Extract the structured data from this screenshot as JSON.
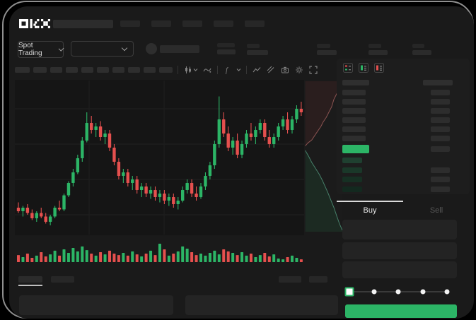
{
  "brand": {
    "name": "OKX"
  },
  "colors": {
    "green": "#2cb566",
    "red": "#e5504e",
    "panel_bg": "#1a1a1a",
    "tab_active_indicator": "#d9d9d9",
    "bid_row_shades": [
      "#1f4030",
      "#1a3829",
      "#163023",
      "#13291f"
    ]
  },
  "header": {
    "nav_placeholder_count": 5
  },
  "market_bar": {
    "market_selector": {
      "label": "Spot Trading"
    },
    "stat_group_count": 4
  },
  "toolbar": {
    "interval_placeholder_count": 10,
    "icons": [
      "chart-type",
      "compare",
      "indicators",
      "line-tool",
      "draw",
      "snapshot",
      "settings",
      "fullscreen"
    ]
  },
  "orderbook": {
    "view_modes": [
      "combined-book",
      "bids-only",
      "asks-only"
    ],
    "ask_row_count": 6,
    "bid_rows": [
      {
        "right": false
      },
      {
        "right": true
      },
      {
        "right": true
      },
      {
        "right": true
      }
    ]
  },
  "trade_form": {
    "tabs": [
      {
        "label": "Buy",
        "active": true
      },
      {
        "label": "Sell",
        "active": false
      }
    ],
    "field_count": 3,
    "slider": {
      "stops": 5,
      "active_index": 0
    }
  },
  "chart_data": {
    "type": "candlestick",
    "price_scale": [
      0,
      100
    ],
    "candles": [
      [
        30,
        33,
        27,
        28
      ],
      [
        28,
        31,
        25,
        30
      ],
      [
        30,
        32,
        26,
        27
      ],
      [
        27,
        29,
        23,
        24
      ],
      [
        24,
        28,
        22,
        27
      ],
      [
        27,
        30,
        24,
        25
      ],
      [
        25,
        27,
        21,
        22
      ],
      [
        22,
        26,
        20,
        25
      ],
      [
        25,
        31,
        24,
        30
      ],
      [
        30,
        34,
        28,
        29
      ],
      [
        29,
        38,
        28,
        37
      ],
      [
        37,
        45,
        36,
        44
      ],
      [
        44,
        52,
        42,
        50
      ],
      [
        50,
        60,
        49,
        58
      ],
      [
        58,
        70,
        56,
        68
      ],
      [
        68,
        84,
        67,
        78
      ],
      [
        78,
        82,
        72,
        74
      ],
      [
        74,
        78,
        70,
        76
      ],
      [
        76,
        79,
        68,
        70
      ],
      [
        70,
        74,
        66,
        72
      ],
      [
        72,
        74,
        62,
        64
      ],
      [
        64,
        66,
        54,
        56
      ],
      [
        56,
        58,
        46,
        48
      ],
      [
        48,
        52,
        44,
        50
      ],
      [
        50,
        52,
        42,
        44
      ],
      [
        44,
        48,
        40,
        46
      ],
      [
        46,
        48,
        38,
        40
      ],
      [
        40,
        44,
        36,
        42
      ],
      [
        42,
        44,
        36,
        38
      ],
      [
        38,
        42,
        35,
        40
      ],
      [
        40,
        42,
        34,
        36
      ],
      [
        36,
        40,
        33,
        38
      ],
      [
        38,
        40,
        32,
        34
      ],
      [
        34,
        38,
        31,
        36
      ],
      [
        36,
        38,
        30,
        32
      ],
      [
        32,
        36,
        29,
        34
      ],
      [
        34,
        42,
        33,
        40
      ],
      [
        40,
        46,
        38,
        44
      ],
      [
        44,
        46,
        36,
        38
      ],
      [
        38,
        42,
        34,
        36
      ],
      [
        36,
        44,
        35,
        42
      ],
      [
        42,
        50,
        40,
        48
      ],
      [
        48,
        56,
        46,
        54
      ],
      [
        54,
        68,
        52,
        66
      ],
      [
        66,
        93,
        64,
        80
      ],
      [
        80,
        84,
        70,
        72
      ],
      [
        72,
        76,
        62,
        64
      ],
      [
        64,
        70,
        60,
        68
      ],
      [
        68,
        72,
        58,
        60
      ],
      [
        60,
        68,
        58,
        66
      ],
      [
        66,
        74,
        64,
        72
      ],
      [
        72,
        78,
        68,
        70
      ],
      [
        70,
        76,
        66,
        74
      ],
      [
        74,
        80,
        72,
        78
      ],
      [
        78,
        80,
        68,
        70
      ],
      [
        70,
        74,
        64,
        66
      ],
      [
        66,
        72,
        64,
        70
      ],
      [
        70,
        78,
        68,
        76
      ],
      [
        76,
        82,
        74,
        80
      ],
      [
        80,
        84,
        72,
        74
      ],
      [
        74,
        82,
        72,
        80
      ],
      [
        80,
        88,
        78,
        86
      ],
      [
        86,
        90,
        82,
        84
      ]
    ],
    "volume": [
      38,
      27,
      46,
      23,
      35,
      54,
      31,
      42,
      62,
      35,
      69,
      50,
      77,
      58,
      85,
      65,
      46,
      35,
      54,
      42,
      62,
      46,
      38,
      50,
      35,
      58,
      42,
      31,
      46,
      62,
      38,
      100,
      69,
      35,
      46,
      58,
      85,
      73,
      54,
      38,
      46,
      35,
      50,
      62,
      42,
      69,
      58,
      50,
      38,
      54,
      35,
      46,
      27,
      38,
      50,
      31,
      42,
      19,
      15,
      27,
      35,
      23,
      15
    ],
    "depth": {
      "asks": [
        [
          1,
          0
        ],
        [
          0.92,
          0.04
        ],
        [
          0.86,
          0.08
        ],
        [
          0.78,
          0.12
        ],
        [
          0.72,
          0.17
        ],
        [
          0.66,
          0.2
        ],
        [
          0.58,
          0.24
        ],
        [
          0.5,
          0.27
        ],
        [
          0.44,
          0.3
        ],
        [
          0.36,
          0.33
        ],
        [
          0.28,
          0.36
        ],
        [
          0.2,
          0.39
        ],
        [
          0.1,
          0.41
        ],
        [
          0.03,
          0.43
        ]
      ],
      "bids": [
        [
          0.03,
          0.46
        ],
        [
          0.12,
          0.5
        ],
        [
          0.2,
          0.54
        ],
        [
          0.3,
          0.58
        ],
        [
          0.4,
          0.62
        ],
        [
          0.48,
          0.66
        ],
        [
          0.55,
          0.7
        ],
        [
          0.62,
          0.74
        ],
        [
          0.7,
          0.79
        ],
        [
          0.78,
          0.84
        ],
        [
          0.86,
          0.9
        ],
        [
          0.93,
          0.95
        ],
        [
          1,
          0.99
        ]
      ]
    }
  }
}
